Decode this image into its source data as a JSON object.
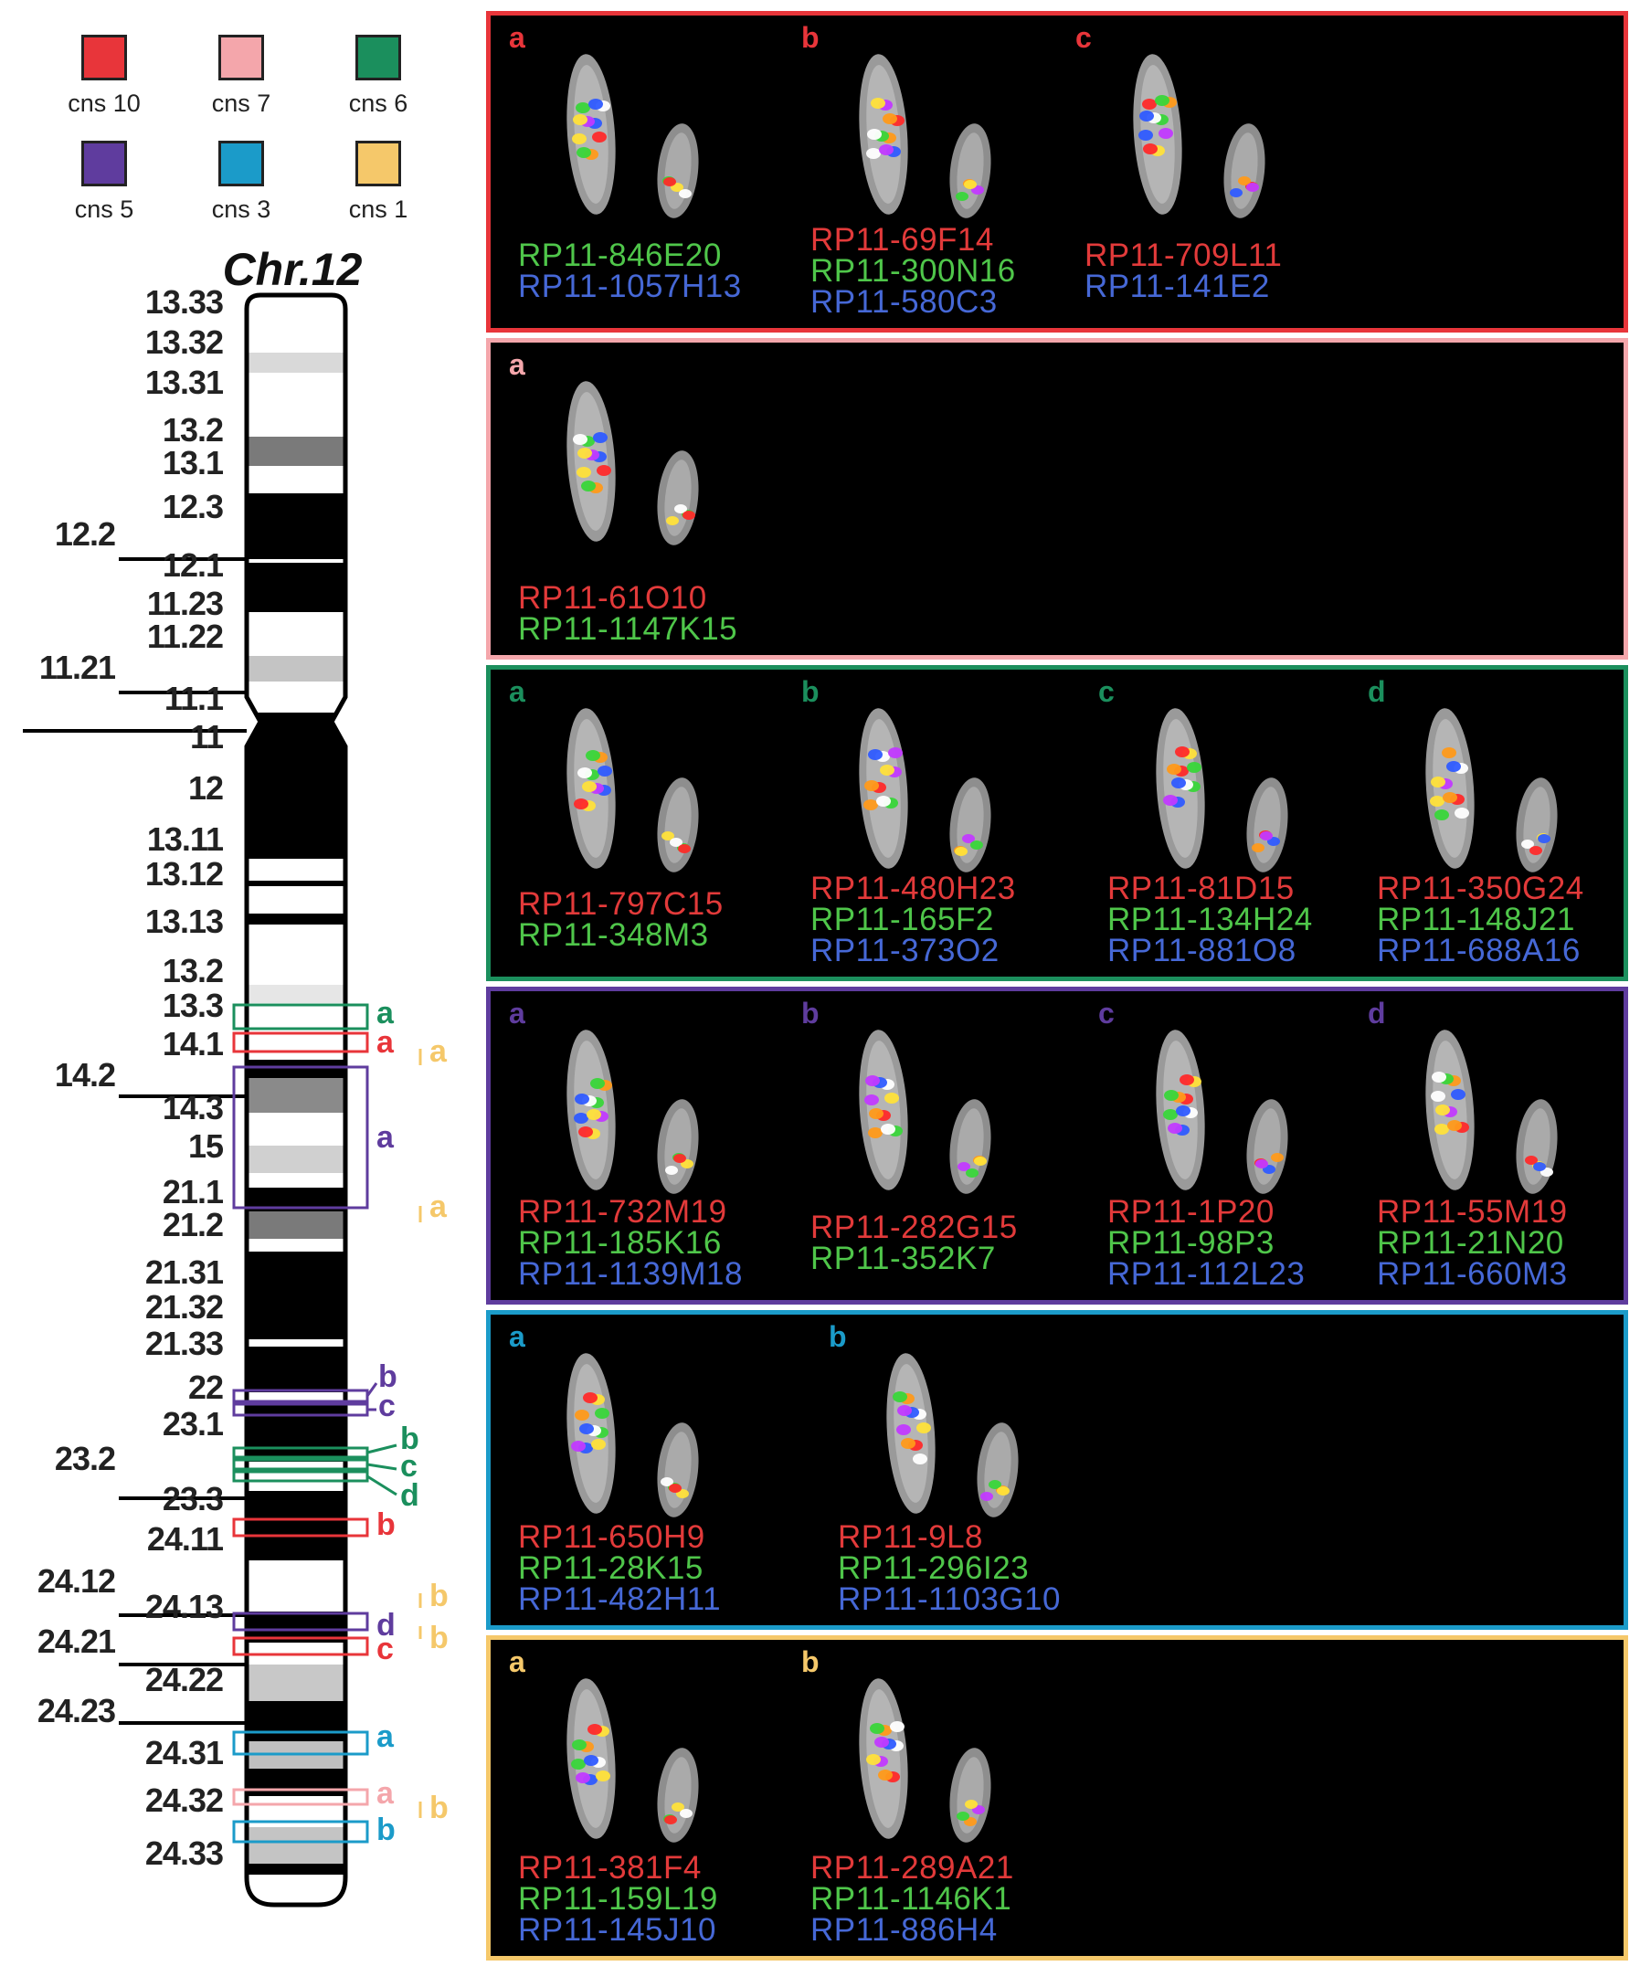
{
  "legend": [
    {
      "label": "cns 10",
      "color": "#e8353a"
    },
    {
      "label": "cns 7",
      "color": "#f4a6ab"
    },
    {
      "label": "cns 6",
      "color": "#1b8f5d"
    },
    {
      "label": "cns 5",
      "color": "#5f3c9e"
    },
    {
      "label": "cns 3",
      "color": "#1b9bc9"
    },
    {
      "label": "cns 1",
      "color": "#f5c86a"
    }
  ],
  "chromosome": {
    "title": "Chr.12",
    "band_labels": [
      "13.33",
      "13.32",
      "13.31",
      "13.2",
      "13.1",
      "12.3",
      "12.2",
      "12.1",
      "11.23",
      "11.22",
      "11.21",
      "11.1",
      "11",
      "12",
      "13.11",
      "13.12",
      "13.13",
      "13.2",
      "13.3",
      "14.1",
      "14.2",
      "14.3",
      "15",
      "21.1",
      "21.2",
      "21.31",
      "21.32",
      "21.33",
      "22",
      "23.1",
      "23.2",
      "23.3",
      "24.11",
      "24.12",
      "24.13",
      "24.21",
      "24.22",
      "24.23",
      "24.31",
      "24.32",
      "24.33"
    ],
    "locus_letters": [
      {
        "text": "a",
        "color": "#1b8f5d"
      },
      {
        "text": "a",
        "color": "#e8353a"
      },
      {
        "text": "a",
        "color": "#f5c86a"
      },
      {
        "text": "a",
        "color": "#5f3c9e"
      },
      {
        "text": "a",
        "color": "#f5c86a"
      },
      {
        "text": "b",
        "color": "#5f3c9e"
      },
      {
        "text": "c",
        "color": "#5f3c9e"
      },
      {
        "text": "b",
        "color": "#1b8f5d"
      },
      {
        "text": "c",
        "color": "#1b8f5d"
      },
      {
        "text": "d",
        "color": "#1b8f5d"
      },
      {
        "text": "b",
        "color": "#e8353a"
      },
      {
        "text": "b",
        "color": "#f5c86a"
      },
      {
        "text": "d",
        "color": "#5f3c9e"
      },
      {
        "text": "c",
        "color": "#e8353a"
      },
      {
        "text": "b",
        "color": "#f5c86a"
      },
      {
        "text": "a",
        "color": "#1b9bc9"
      },
      {
        "text": "a",
        "color": "#f4a6ab"
      },
      {
        "text": "b",
        "color": "#1b9bc9"
      },
      {
        "text": "b",
        "color": "#f5c86a"
      }
    ]
  },
  "panels": [
    {
      "color": "#e8353a",
      "subpanels": [
        {
          "letter": "a",
          "probes": [
            {
              "text": "RP11-846E20",
              "color": "green"
            },
            {
              "text": "RP11-1057H13",
              "color": "blue"
            }
          ]
        },
        {
          "letter": "b",
          "probes": [
            {
              "text": "RP11-69F14",
              "color": "red"
            },
            {
              "text": "RP11-300N16",
              "color": "green"
            },
            {
              "text": "RP11-580C3",
              "color": "blue"
            }
          ]
        },
        {
          "letter": "c",
          "probes": [
            {
              "text": "RP11-709L11",
              "color": "red"
            },
            {
              "text": "RP11-141E2",
              "color": "blue"
            }
          ]
        }
      ]
    },
    {
      "color": "#f4a6ab",
      "subpanels": [
        {
          "letter": "a",
          "probes": [
            {
              "text": "RP11-61O10",
              "color": "red"
            },
            {
              "text": "RP11-1147K15",
              "color": "green"
            }
          ]
        }
      ]
    },
    {
      "color": "#1b8f5d",
      "subpanels": [
        {
          "letter": "a",
          "probes": [
            {
              "text": "RP11-797C15",
              "color": "red"
            },
            {
              "text": "RP11-348M3",
              "color": "green"
            }
          ]
        },
        {
          "letter": "b",
          "probes": [
            {
              "text": "RP11-480H23",
              "color": "red"
            },
            {
              "text": "RP11-165F2",
              "color": "green"
            },
            {
              "text": "RP11-373O2",
              "color": "blue"
            }
          ]
        },
        {
          "letter": "c",
          "probes": [
            {
              "text": "RP11-81D15",
              "color": "red"
            },
            {
              "text": "RP11-134H24",
              "color": "green"
            },
            {
              "text": "RP11-881O8",
              "color": "blue"
            }
          ]
        },
        {
          "letter": "d",
          "probes": [
            {
              "text": "RP11-350G24",
              "color": "red"
            },
            {
              "text": "RP11-148J21",
              "color": "green"
            },
            {
              "text": "RP11-688A16",
              "color": "blue"
            }
          ]
        }
      ]
    },
    {
      "color": "#5f3c9e",
      "subpanels": [
        {
          "letter": "a",
          "probes": [
            {
              "text": "RP11-732M19",
              "color": "red"
            },
            {
              "text": "RP11-185K16",
              "color": "green"
            },
            {
              "text": "RP11-1139M18",
              "color": "blue"
            }
          ]
        },
        {
          "letter": "b",
          "probes": [
            {
              "text": "RP11-282G15",
              "color": "red"
            },
            {
              "text": "RP11-352K7",
              "color": "green"
            }
          ]
        },
        {
          "letter": "c",
          "probes": [
            {
              "text": "RP11-1P20",
              "color": "red"
            },
            {
              "text": "RP11-98P3",
              "color": "green"
            },
            {
              "text": "RP11-112L23",
              "color": "blue"
            }
          ]
        },
        {
          "letter": "d",
          "probes": [
            {
              "text": "RP11-55M19",
              "color": "red"
            },
            {
              "text": "RP11-21N20",
              "color": "green"
            },
            {
              "text": "RP11-660M3",
              "color": "blue"
            }
          ]
        }
      ]
    },
    {
      "color": "#1b9bc9",
      "subpanels": [
        {
          "letter": "a",
          "probes": [
            {
              "text": "RP11-650H9",
              "color": "red"
            },
            {
              "text": "RP11-28K15",
              "color": "green"
            },
            {
              "text": "RP11-482H11",
              "color": "blue"
            }
          ]
        },
        {
          "letter": "b",
          "probes": [
            {
              "text": "RP11-9L8",
              "color": "red"
            },
            {
              "text": "RP11-296I23",
              "color": "green"
            },
            {
              "text": "RP11-1103G10",
              "color": "blue"
            }
          ]
        }
      ]
    },
    {
      "color": "#f5c86a",
      "subpanels": [
        {
          "letter": "a",
          "probes": [
            {
              "text": "RP11-381F4",
              "color": "red"
            },
            {
              "text": "RP11-159L19",
              "color": "green"
            },
            {
              "text": "RP11-145J10",
              "color": "blue"
            }
          ]
        },
        {
          "letter": "b",
          "probes": [
            {
              "text": "RP11-289A21",
              "color": "red"
            },
            {
              "text": "RP11-1146K1",
              "color": "green"
            },
            {
              "text": "RP11-886H4",
              "color": "blue"
            }
          ]
        }
      ]
    }
  ]
}
